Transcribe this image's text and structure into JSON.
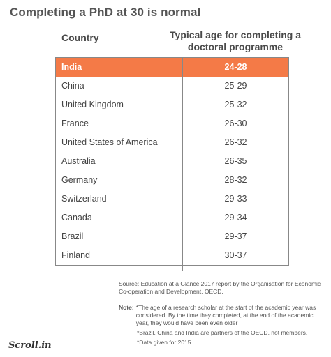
{
  "title": "Completing a PhD at 30 is normal",
  "chart_data": {
    "type": "table",
    "columns": [
      "Country",
      "Typical age for completing a doctoral programme"
    ],
    "column_age_line1": "Typical age for completing a",
    "column_age_line2": "doctoral programme",
    "rows": [
      {
        "country": "India",
        "age": "24-28",
        "highlight": true
      },
      {
        "country": "China",
        "age": "25-29"
      },
      {
        "country": "United Kingdom",
        "age": "25-32"
      },
      {
        "country": "France",
        "age": "26-30"
      },
      {
        "country": "United States of America",
        "age": "26-32"
      },
      {
        "country": "Australia",
        "age": "26-35"
      },
      {
        "country": "Germany",
        "age": "28-32"
      },
      {
        "country": "Switzerland",
        "age": "29-33"
      },
      {
        "country": "Canada",
        "age": "29-34"
      },
      {
        "country": "Brazil",
        "age": "29-37"
      },
      {
        "country": "Finland",
        "age": "30-37"
      }
    ],
    "highlight_color": "#f47a47"
  },
  "source": "Source: Education at a Glance 2017 report by the Organisation for Economic Co-operation and Development, OECD.",
  "notes": {
    "label": "Note:",
    "n1": "*The age of a research scholar at the start of the academic year was considered. By the time they completed, at the end of the academic year, they would have been even older",
    "n2": "*Brazil, China and India are partners of the OECD, not members.",
    "n3": "*Data given for 2015"
  },
  "logo": "Scroll.in"
}
